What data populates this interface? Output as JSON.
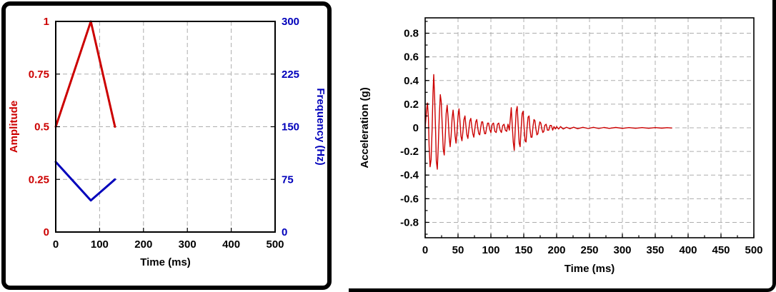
{
  "accent_colors": {
    "red": "#cc0000",
    "blue": "#0000bb",
    "grid": "#adadad",
    "frame": "#000000"
  },
  "chart_data": [
    {
      "type": "line",
      "title": "",
      "xlabel": "Time (ms)",
      "xlim": [
        0,
        500
      ],
      "x_ticks": [
        0,
        100,
        200,
        300,
        400,
        500
      ],
      "x_tick_labels": [
        "0",
        "100",
        "200",
        "300",
        "400",
        "500"
      ],
      "grid": true,
      "legend": "none",
      "axes": {
        "left": {
          "label": "Amplitude",
          "color": "#cc0000",
          "lim": [
            0,
            1
          ],
          "ticks": [
            0,
            0.25,
            0.5,
            0.75,
            1
          ],
          "tick_labels": [
            "0",
            "0.25",
            "0.5",
            "0.75",
            "1"
          ]
        },
        "right": {
          "label": "Frequency (Hz)",
          "color": "#0000bb",
          "lim": [
            0,
            300
          ],
          "ticks": [
            0,
            75,
            150,
            225,
            300
          ],
          "tick_labels": [
            "0",
            "75",
            "150",
            "225",
            "300"
          ]
        }
      },
      "series": [
        {
          "name": "amplitude",
          "axis": "left",
          "color": "#cc0000",
          "width": 3,
          "points": [
            [
              0,
              0.5
            ],
            [
              80,
              1.0
            ],
            [
              135,
              0.5
            ]
          ]
        },
        {
          "name": "frequency",
          "axis": "right",
          "color": "#0000bb",
          "width": 3,
          "points": [
            [
              0,
              100
            ],
            [
              80,
              45
            ],
            [
              135,
              75
            ]
          ]
        }
      ]
    },
    {
      "type": "line",
      "title": "",
      "xlabel": "Time (ms)",
      "xlim": [
        0,
        500
      ],
      "x_ticks": [
        0,
        50,
        100,
        150,
        200,
        250,
        300,
        350,
        400,
        450,
        500
      ],
      "x_tick_labels": [
        "0",
        "50",
        "100",
        "150",
        "200",
        "250",
        "300",
        "350",
        "400",
        "450",
        "500"
      ],
      "x_minor": 25,
      "grid": true,
      "legend": "none",
      "axes": {
        "left": {
          "label": "Acceleration (g)",
          "color": "#000000",
          "lim": [
            -0.93,
            0.93
          ],
          "minor": 0.1,
          "ticks": [
            -0.8,
            -0.6,
            -0.4,
            -0.2,
            0,
            0.2,
            0.4,
            0.6,
            0.8
          ],
          "tick_labels": [
            "-0.8",
            "-0.6",
            "-0.4",
            "-0.2",
            "0",
            "0.2",
            "0.4",
            "0.6",
            "0.8"
          ]
        }
      },
      "series": [
        {
          "name": "acceleration",
          "axis": "left",
          "color": "#cc0000",
          "width": 1.4,
          "points": [
            [
              0,
              0
            ],
            [
              2,
              0.14
            ],
            [
              3.5,
              0.21
            ],
            [
              5,
              0.08
            ],
            [
              6,
              -0.15
            ],
            [
              7.5,
              -0.33
            ],
            [
              9,
              -0.27
            ],
            [
              10.5,
              -0.02
            ],
            [
              12,
              0.3
            ],
            [
              13,
              0.45
            ],
            [
              14.5,
              0.25
            ],
            [
              16,
              -0.05
            ],
            [
              17,
              -0.28
            ],
            [
              18.5,
              -0.35
            ],
            [
              20,
              -0.15
            ],
            [
              21.5,
              0.1
            ],
            [
              23,
              0.28
            ],
            [
              24.5,
              0.22
            ],
            [
              26,
              0.02
            ],
            [
              27.5,
              -0.18
            ],
            [
              29,
              -0.23
            ],
            [
              30.5,
              -0.08
            ],
            [
              32,
              0.12
            ],
            [
              33.5,
              0.19
            ],
            [
              35,
              0.08
            ],
            [
              36.5,
              -0.08
            ],
            [
              38,
              -0.16
            ],
            [
              39.5,
              -0.07
            ],
            [
              41,
              0.08
            ],
            [
              42.5,
              0.15
            ],
            [
              44,
              0.06
            ],
            [
              45.5,
              -0.07
            ],
            [
              47,
              -0.13
            ],
            [
              48.5,
              -0.04
            ],
            [
              50,
              0.1
            ],
            [
              51.5,
              0.16
            ],
            [
              53,
              0.05
            ],
            [
              54.5,
              -0.07
            ],
            [
              56,
              -0.11
            ],
            [
              57.5,
              -0.03
            ],
            [
              59,
              0.07
            ],
            [
              60.5,
              0.1
            ],
            [
              62,
              0.02
            ],
            [
              63.5,
              -0.06
            ],
            [
              65,
              -0.09
            ],
            [
              66.5,
              -0.01
            ],
            [
              68,
              0.06
            ],
            [
              69.5,
              0.08
            ],
            [
              71,
              0.01
            ],
            [
              72.5,
              -0.05
            ],
            [
              74,
              -0.08
            ],
            [
              75.5,
              -0.01
            ],
            [
              77,
              0.05
            ],
            [
              78.5,
              0.07
            ],
            [
              80,
              0.0
            ],
            [
              81.5,
              -0.05
            ],
            [
              83,
              -0.06
            ],
            [
              84.5,
              0.0
            ],
            [
              86,
              0.05
            ],
            [
              87.5,
              0.05
            ],
            [
              89,
              -0.01
            ],
            [
              90.5,
              -0.05
            ],
            [
              92,
              -0.05
            ],
            [
              93.5,
              0.0
            ],
            [
              95,
              0.04
            ],
            [
              96.5,
              0.04
            ],
            [
              98,
              -0.01
            ],
            [
              100,
              -0.04
            ],
            [
              102,
              0.03
            ],
            [
              104,
              0.04
            ],
            [
              106,
              -0.03
            ],
            [
              108,
              -0.04
            ],
            [
              110,
              0.03
            ],
            [
              112,
              0.04
            ],
            [
              114,
              -0.02
            ],
            [
              116,
              -0.04
            ],
            [
              118,
              0.02
            ],
            [
              120,
              0.03
            ],
            [
              122,
              -0.02
            ],
            [
              124,
              -0.03
            ],
            [
              126,
              0.03
            ],
            [
              128,
              -0.02
            ],
            [
              129.5,
              0.07
            ],
            [
              131,
              0.17
            ],
            [
              132.5,
              0.02
            ],
            [
              134,
              -0.12
            ],
            [
              135.5,
              -0.19
            ],
            [
              137,
              -0.02
            ],
            [
              138.5,
              0.14
            ],
            [
              140,
              0.18
            ],
            [
              141.5,
              0.02
            ],
            [
              143,
              -0.13
            ],
            [
              144.5,
              -0.16
            ],
            [
              146,
              -0.01
            ],
            [
              147.5,
              0.12
            ],
            [
              149,
              0.14
            ],
            [
              150.5,
              0.0
            ],
            [
              152,
              -0.11
            ],
            [
              153.5,
              -0.12
            ],
            [
              155,
              0.0
            ],
            [
              156.5,
              0.09
            ],
            [
              158,
              0.1
            ],
            [
              159.5,
              -0.01
            ],
            [
              161,
              -0.08
            ],
            [
              162.5,
              -0.08
            ],
            [
              164,
              0.01
            ],
            [
              165.5,
              0.07
            ],
            [
              167,
              0.06
            ],
            [
              168.5,
              -0.01
            ],
            [
              170,
              -0.06
            ],
            [
              171.5,
              -0.05
            ],
            [
              173,
              0.01
            ],
            [
              174.5,
              0.05
            ],
            [
              176,
              0.04
            ],
            [
              177.5,
              -0.01
            ],
            [
              179,
              -0.04
            ],
            [
              180.5,
              -0.03
            ],
            [
              182,
              0.02
            ],
            [
              184,
              0.03
            ],
            [
              186,
              -0.02
            ],
            [
              188,
              -0.02
            ],
            [
              190,
              0.02
            ],
            [
              192,
              0.02
            ],
            [
              194,
              -0.02
            ],
            [
              196,
              0.01
            ],
            [
              198,
              -0.01
            ],
            [
              200,
              0.01
            ],
            [
              203,
              -0.01
            ],
            [
              206,
              0.01
            ],
            [
              210,
              -0.01
            ],
            [
              215,
              0.005
            ],
            [
              220,
              -0.008
            ],
            [
              226,
              0.005
            ],
            [
              232,
              -0.008
            ],
            [
              240,
              0.004
            ],
            [
              248,
              -0.006
            ],
            [
              256,
              0.004
            ],
            [
              264,
              -0.006
            ],
            [
              272,
              0.003
            ],
            [
              280,
              -0.005
            ],
            [
              290,
              0.003
            ],
            [
              300,
              -0.005
            ],
            [
              310,
              0.002
            ],
            [
              320,
              -0.004
            ],
            [
              330,
              0.002
            ],
            [
              340,
              -0.004
            ],
            [
              350,
              0.002
            ],
            [
              360,
              -0.003
            ],
            [
              368,
              0.001
            ],
            [
              375,
              -0.002
            ]
          ]
        }
      ]
    }
  ]
}
